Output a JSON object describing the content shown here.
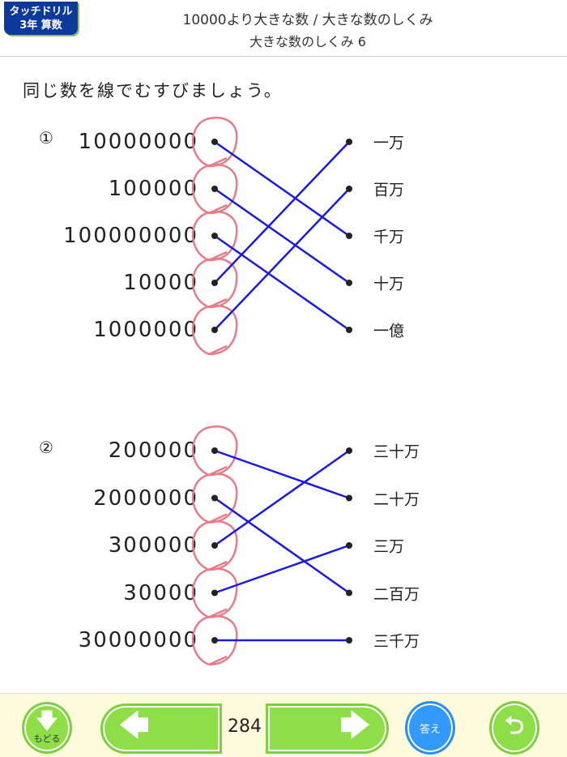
{
  "header": {
    "badge_line1": "タッチドリル",
    "badge_line2": "3年 算数",
    "title": "10000より大きな数 / 大きな数のしくみ",
    "subtitle": "大きな数のしくみ 6"
  },
  "instruction": "同じ数を線でむすびましょう。",
  "problems": [
    {
      "label": "①",
      "left": [
        "10000000",
        "100000",
        "100000000",
        "10000",
        "1000000"
      ],
      "right": [
        "一万",
        "百万",
        "千万",
        "十万",
        "一億"
      ],
      "matches": [
        2,
        3,
        4,
        0,
        1
      ]
    },
    {
      "label": "②",
      "left": [
        "200000",
        "2000000",
        "300000",
        "30000",
        "30000000"
      ],
      "right": [
        "三十万",
        "二十万",
        "三万",
        "二百万",
        "三千万"
      ],
      "matches": [
        1,
        3,
        0,
        2,
        4
      ]
    }
  ],
  "colors": {
    "line": "#1a1adf",
    "circle": "#e87a8a",
    "button_green": "#8ede48",
    "answer_blue": "#3399ff",
    "badge": "#0d3a9a"
  },
  "footer": {
    "back_label": "もどる",
    "page": "284",
    "answer_label": "答え",
    "prev_icon": "arrow-left-icon",
    "next_icon": "arrow-right-icon",
    "undo_icon": "u-turn-icon"
  }
}
